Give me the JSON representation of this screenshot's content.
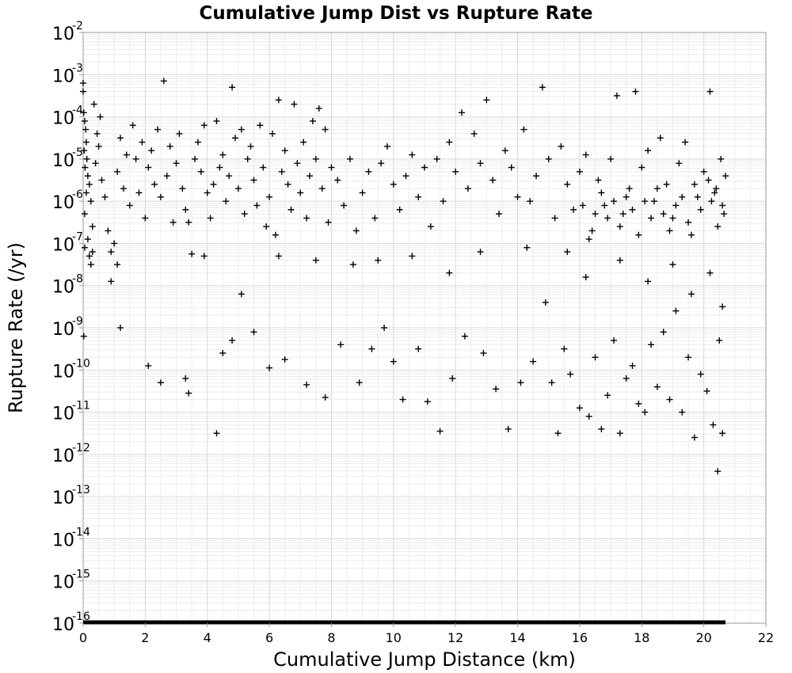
{
  "chart_data": {
    "type": "scatter",
    "title": "Cumulative Jump Dist vs Rupture Rate",
    "xlabel": "Cumulative Jump Distance (km)",
    "ylabel": "Rupture Rate (/yr)",
    "xlim": [
      0,
      22
    ],
    "ylim_log10": [
      -16,
      -2
    ],
    "y_scale": "log",
    "grid": true,
    "legend": "none",
    "marker": "+",
    "marker_color": "#000000",
    "x_ticks": [
      "0",
      "2",
      "4",
      "6",
      "8",
      "10",
      "12",
      "14",
      "16",
      "18",
      "20",
      "22"
    ],
    "y_ticks": [
      {
        "base": "10",
        "exp": "-2"
      },
      {
        "base": "10",
        "exp": "-3"
      },
      {
        "base": "10",
        "exp": "-4"
      },
      {
        "base": "10",
        "exp": "-5"
      },
      {
        "base": "10",
        "exp": "-6"
      },
      {
        "base": "10",
        "exp": "-7"
      },
      {
        "base": "10",
        "exp": "-8"
      },
      {
        "base": "10",
        "exp": "-9"
      },
      {
        "base": "10",
        "exp": "-10"
      },
      {
        "base": "10",
        "exp": "-11"
      },
      {
        "base": "10",
        "exp": "-12"
      },
      {
        "base": "10",
        "exp": "-13"
      },
      {
        "base": "10",
        "exp": "-14"
      },
      {
        "base": "10",
        "exp": "-15"
      },
      {
        "base": "10",
        "exp": "-16"
      }
    ],
    "floor_series": {
      "y_log10": -16,
      "x_range": [
        0,
        20.7
      ]
    },
    "points_log10": [
      [
        0.0,
        -3.2
      ],
      [
        0.0,
        -3.4
      ],
      [
        0.02,
        -3.9
      ],
      [
        0.05,
        -4.1
      ],
      [
        0.08,
        -4.3
      ],
      [
        0.1,
        -4.6
      ],
      [
        0.03,
        -4.8
      ],
      [
        0.12,
        -5.0
      ],
      [
        0.06,
        -5.2
      ],
      [
        0.15,
        -5.4
      ],
      [
        0.2,
        -5.6
      ],
      [
        0.1,
        -5.8
      ],
      [
        0.25,
        -6.0
      ],
      [
        0.05,
        -6.3
      ],
      [
        0.3,
        -6.6
      ],
      [
        0.15,
        -6.9
      ],
      [
        0.02,
        -9.2
      ],
      [
        0.2,
        -7.3
      ],
      [
        0.25,
        -7.5
      ],
      [
        0.4,
        -5.1
      ],
      [
        0.5,
        -4.7
      ],
      [
        0.6,
        -5.5
      ],
      [
        0.45,
        -4.4
      ],
      [
        0.55,
        -4.0
      ],
      [
        0.35,
        -3.7
      ],
      [
        0.7,
        -5.9
      ],
      [
        0.8,
        -6.7
      ],
      [
        0.9,
        -7.9
      ],
      [
        1.0,
        -7.0
      ],
      [
        0.9,
        -7.2
      ],
      [
        1.1,
        -5.3
      ],
      [
        1.2,
        -4.5
      ],
      [
        1.3,
        -5.7
      ],
      [
        1.4,
        -4.9
      ],
      [
        1.5,
        -6.1
      ],
      [
        1.6,
        -4.2
      ],
      [
        1.7,
        -5.0
      ],
      [
        1.8,
        -5.8
      ],
      [
        1.9,
        -4.6
      ],
      [
        2.0,
        -6.4
      ],
      [
        2.1,
        -5.2
      ],
      [
        2.2,
        -4.8
      ],
      [
        2.3,
        -5.6
      ],
      [
        2.4,
        -4.3
      ],
      [
        2.5,
        -5.9
      ],
      [
        2.6,
        -3.15
      ],
      [
        2.7,
        -5.4
      ],
      [
        2.8,
        -4.7
      ],
      [
        2.9,
        -6.5
      ],
      [
        3.0,
        -5.1
      ],
      [
        3.1,
        -4.4
      ],
      [
        3.2,
        -5.7
      ],
      [
        3.3,
        -6.2
      ],
      [
        3.4,
        -6.5
      ],
      [
        3.5,
        -7.25
      ],
      [
        3.6,
        -5.0
      ],
      [
        3.7,
        -4.6
      ],
      [
        3.8,
        -5.3
      ],
      [
        3.9,
        -4.2
      ],
      [
        4.0,
        -5.8
      ],
      [
        4.1,
        -6.4
      ],
      [
        4.2,
        -5.6
      ],
      [
        4.3,
        -4.1
      ],
      [
        4.4,
        -5.2
      ],
      [
        4.5,
        -4.9
      ],
      [
        4.6,
        -6.0
      ],
      [
        4.7,
        -5.4
      ],
      [
        4.8,
        -3.3
      ],
      [
        4.9,
        -4.5
      ],
      [
        5.0,
        -5.7
      ],
      [
        5.1,
        -4.3
      ],
      [
        5.2,
        -6.3
      ],
      [
        5.3,
        -5.0
      ],
      [
        5.4,
        -4.7
      ],
      [
        5.5,
        -5.5
      ],
      [
        5.6,
        -6.1
      ],
      [
        5.7,
        -4.2
      ],
      [
        5.8,
        -5.2
      ],
      [
        5.9,
        -6.6
      ],
      [
        6.0,
        -5.9
      ],
      [
        6.1,
        -4.4
      ],
      [
        6.2,
        -6.8
      ],
      [
        6.3,
        -3.6
      ],
      [
        6.4,
        -5.3
      ],
      [
        6.5,
        -4.8
      ],
      [
        6.6,
        -5.6
      ],
      [
        6.7,
        -6.2
      ],
      [
        6.8,
        -3.7
      ],
      [
        6.9,
        -5.1
      ],
      [
        7.0,
        -5.8
      ],
      [
        7.1,
        -4.6
      ],
      [
        7.2,
        -6.4
      ],
      [
        7.3,
        -5.4
      ],
      [
        7.4,
        -4.1
      ],
      [
        7.5,
        -5.0
      ],
      [
        7.6,
        -3.8
      ],
      [
        7.7,
        -5.7
      ],
      [
        7.8,
        -4.3
      ],
      [
        7.9,
        -6.5
      ],
      [
        8.0,
        -5.2
      ],
      [
        8.2,
        -5.5
      ],
      [
        8.4,
        -6.1
      ],
      [
        8.6,
        -5.0
      ],
      [
        8.8,
        -6.7
      ],
      [
        9.0,
        -5.8
      ],
      [
        9.2,
        -5.3
      ],
      [
        9.4,
        -6.4
      ],
      [
        9.6,
        -5.1
      ],
      [
        9.8,
        -4.7
      ],
      [
        10.0,
        -5.6
      ],
      [
        10.2,
        -6.2
      ],
      [
        10.4,
        -5.4
      ],
      [
        10.6,
        -4.9
      ],
      [
        10.8,
        -5.9
      ],
      [
        11.0,
        -5.2
      ],
      [
        11.2,
        -6.6
      ],
      [
        11.4,
        -5.0
      ],
      [
        11.6,
        -6.0
      ],
      [
        11.8,
        -4.6
      ],
      [
        12.0,
        -5.3
      ],
      [
        12.2,
        -3.9
      ],
      [
        12.4,
        -5.7
      ],
      [
        12.6,
        -4.4
      ],
      [
        12.8,
        -5.1
      ],
      [
        13.0,
        -3.6
      ],
      [
        13.2,
        -5.5
      ],
      [
        13.4,
        -6.3
      ],
      [
        13.6,
        -4.8
      ],
      [
        13.8,
        -5.2
      ],
      [
        14.0,
        -5.9
      ],
      [
        14.2,
        -4.3
      ],
      [
        14.4,
        -6.0
      ],
      [
        14.6,
        -5.4
      ],
      [
        14.8,
        -3.3
      ],
      [
        15.0,
        -5.0
      ],
      [
        15.2,
        -6.4
      ],
      [
        15.4,
        -4.7
      ],
      [
        15.6,
        -5.6
      ],
      [
        15.8,
        -6.2
      ],
      [
        16.0,
        -5.3
      ],
      [
        16.2,
        -4.9
      ],
      [
        16.4,
        -6.7
      ],
      [
        16.6,
        -5.5
      ],
      [
        16.8,
        -6.1
      ],
      [
        17.0,
        -5.0
      ],
      [
        17.2,
        -3.5
      ],
      [
        17.4,
        -6.3
      ],
      [
        17.6,
        -5.7
      ],
      [
        17.8,
        -3.4
      ],
      [
        18.0,
        -5.2
      ],
      [
        18.2,
        -4.8
      ],
      [
        18.4,
        -6.0
      ],
      [
        18.6,
        -4.5
      ],
      [
        18.8,
        -5.6
      ],
      [
        19.0,
        -6.4
      ],
      [
        19.2,
        -5.1
      ],
      [
        19.4,
        -4.6
      ],
      [
        19.6,
        -6.8
      ],
      [
        19.8,
        -5.9
      ],
      [
        20.0,
        -5.3
      ],
      [
        20.2,
        -3.4
      ],
      [
        20.4,
        -5.7
      ],
      [
        20.6,
        -6.1
      ],
      [
        20.7,
        -5.4
      ],
      [
        20.65,
        -6.3
      ],
      [
        20.55,
        -5.0
      ],
      [
        20.45,
        -6.6
      ],
      [
        20.35,
        -5.8
      ],
      [
        20.25,
        -6.0
      ],
      [
        20.15,
        -5.5
      ],
      [
        19.9,
        -6.2
      ],
      [
        19.7,
        -5.6
      ],
      [
        19.5,
        -6.5
      ],
      [
        19.3,
        -5.9
      ],
      [
        19.1,
        -6.1
      ],
      [
        18.9,
        -6.7
      ],
      [
        18.7,
        -6.3
      ],
      [
        18.5,
        -5.7
      ],
      [
        18.3,
        -6.4
      ],
      [
        18.1,
        -6.0
      ],
      [
        17.9,
        -6.8
      ],
      [
        17.7,
        -6.2
      ],
      [
        17.5,
        -5.9
      ],
      [
        17.3,
        -6.6
      ],
      [
        17.1,
        -6.0
      ],
      [
        16.9,
        -6.4
      ],
      [
        16.7,
        -5.8
      ],
      [
        16.5,
        -6.3
      ],
      [
        16.3,
        -6.9
      ],
      [
        16.1,
        -6.1
      ],
      [
        1.2,
        -9.0
      ],
      [
        2.1,
        -9.9
      ],
      [
        2.5,
        -10.3
      ],
      [
        3.3,
        -10.2
      ],
      [
        3.4,
        -10.55
      ],
      [
        4.3,
        -11.5
      ],
      [
        4.5,
        -9.6
      ],
      [
        4.8,
        -9.3
      ],
      [
        5.1,
        -8.2
      ],
      [
        5.5,
        -9.1
      ],
      [
        6.0,
        -9.95
      ],
      [
        6.5,
        -9.75
      ],
      [
        7.2,
        -10.35
      ],
      [
        7.8,
        -10.65
      ],
      [
        8.3,
        -9.4
      ],
      [
        8.9,
        -10.3
      ],
      [
        9.3,
        -9.5
      ],
      [
        9.7,
        -9.0
      ],
      [
        10.0,
        -9.8
      ],
      [
        10.3,
        -10.7
      ],
      [
        10.8,
        -9.5
      ],
      [
        11.1,
        -10.75
      ],
      [
        11.5,
        -11.45
      ],
      [
        11.9,
        -10.2
      ],
      [
        12.3,
        -9.2
      ],
      [
        12.9,
        -9.6
      ],
      [
        13.3,
        -10.45
      ],
      [
        13.7,
        -11.4
      ],
      [
        14.1,
        -10.3
      ],
      [
        14.5,
        -9.8
      ],
      [
        14.9,
        -8.4
      ],
      [
        15.1,
        -10.3
      ],
      [
        15.3,
        -11.5
      ],
      [
        15.5,
        -9.5
      ],
      [
        15.7,
        -10.1
      ],
      [
        16.0,
        -10.9
      ],
      [
        16.3,
        -11.1
      ],
      [
        16.5,
        -9.7
      ],
      [
        16.7,
        -11.4
      ],
      [
        16.9,
        -10.6
      ],
      [
        17.1,
        -9.3
      ],
      [
        17.3,
        -11.5
      ],
      [
        17.5,
        -10.2
      ],
      [
        17.7,
        -9.9
      ],
      [
        17.9,
        -10.8
      ],
      [
        18.1,
        -11.0
      ],
      [
        18.3,
        -9.4
      ],
      [
        18.5,
        -10.4
      ],
      [
        18.7,
        -9.1
      ],
      [
        18.9,
        -10.7
      ],
      [
        19.1,
        -8.6
      ],
      [
        19.3,
        -11.0
      ],
      [
        19.5,
        -9.7
      ],
      [
        19.7,
        -11.6
      ],
      [
        19.9,
        -10.1
      ],
      [
        20.1,
        -10.5
      ],
      [
        20.3,
        -11.3
      ],
      [
        20.45,
        -12.4
      ],
      [
        20.5,
        -9.3
      ],
      [
        20.6,
        -11.5
      ],
      [
        0.05,
        -7.1
      ],
      [
        0.3,
        -7.2
      ],
      [
        1.1,
        -7.5
      ],
      [
        3.9,
        -7.3
      ],
      [
        6.3,
        -7.3
      ],
      [
        7.5,
        -7.4
      ],
      [
        8.7,
        -7.5
      ],
      [
        9.5,
        -7.4
      ],
      [
        10.6,
        -7.3
      ],
      [
        11.8,
        -7.7
      ],
      [
        12.8,
        -7.2
      ],
      [
        14.3,
        -7.1
      ],
      [
        15.6,
        -7.2
      ],
      [
        16.2,
        -7.8
      ],
      [
        17.3,
        -7.4
      ],
      [
        18.2,
        -7.9
      ],
      [
        19.0,
        -7.5
      ],
      [
        19.6,
        -8.2
      ],
      [
        20.2,
        -7.7
      ],
      [
        20.6,
        -8.5
      ]
    ]
  }
}
